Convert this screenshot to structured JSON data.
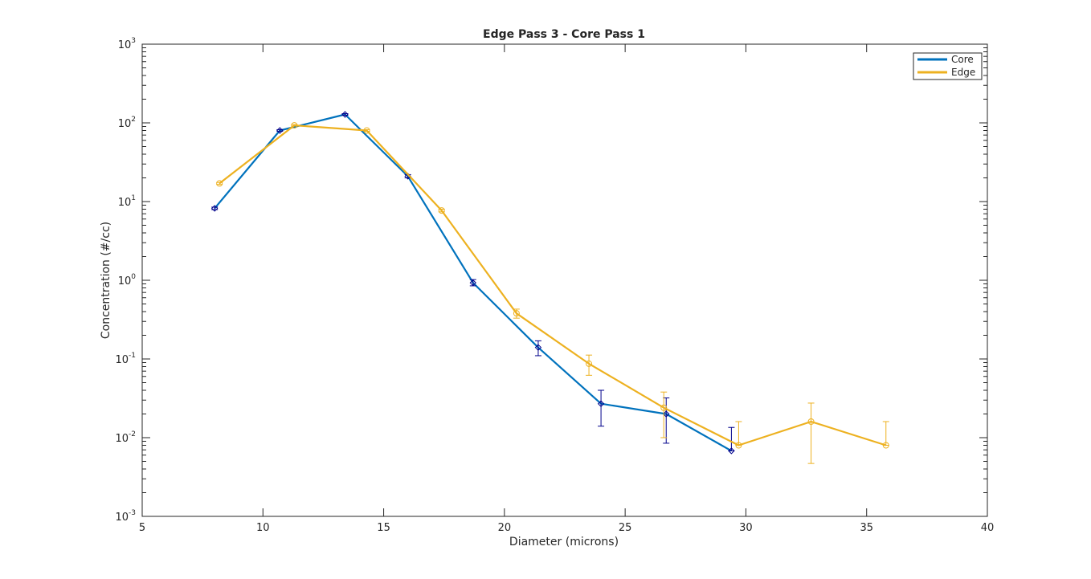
{
  "chart_data": {
    "type": "line",
    "title": "Edge Pass 3 - Core Pass 1",
    "xlabel": "Diameter (microns)",
    "ylabel": "Concentration (#/cc)",
    "xlim": [
      5,
      40
    ],
    "ylim": [
      0.001,
      1000
    ],
    "y_scale": "log",
    "x_ticks": [
      5,
      10,
      15,
      20,
      25,
      30,
      35,
      40
    ],
    "x_tick_labels": [
      "5",
      "10",
      "15",
      "20",
      "25",
      "30",
      "35",
      "40"
    ],
    "y_ticks": [
      {
        "value": 0.001,
        "base": "10",
        "exp": "-3"
      },
      {
        "value": 0.01,
        "base": "10",
        "exp": "-2"
      },
      {
        "value": 0.1,
        "base": "10",
        "exp": "-1"
      },
      {
        "value": 1,
        "base": "10",
        "exp": "0"
      },
      {
        "value": 10,
        "base": "10",
        "exp": "1"
      },
      {
        "value": 100,
        "base": "10",
        "exp": "2"
      },
      {
        "value": 1000,
        "base": "10",
        "exp": "3"
      }
    ],
    "grid": false,
    "legend_position": "top-right",
    "series": [
      {
        "name": "Core",
        "color": "#0072bd",
        "marker_color": "#00008b",
        "marker": "diamond",
        "points": [
          {
            "x": 8.0,
            "y": 8.2,
            "lo": 7.9,
            "hi": 8.5
          },
          {
            "x": 10.7,
            "y": 80,
            "lo": 78,
            "hi": 82
          },
          {
            "x": 13.4,
            "y": 128,
            "lo": 125,
            "hi": 131
          },
          {
            "x": 16.0,
            "y": 21,
            "lo": 20,
            "hi": 22
          },
          {
            "x": 18.7,
            "y": 0.93,
            "lo": 0.85,
            "hi": 1.02
          },
          {
            "x": 21.4,
            "y": 0.14,
            "lo": 0.11,
            "hi": 0.17
          },
          {
            "x": 24.0,
            "y": 0.027,
            "lo": 0.014,
            "hi": 0.04
          },
          {
            "x": 26.7,
            "y": 0.02,
            "lo": 0.0085,
            "hi": 0.032
          },
          {
            "x": 29.4,
            "y": 0.0068,
            "lo": 0.0068,
            "hi": 0.0135
          }
        ]
      },
      {
        "name": "Edge",
        "color": "#edb120",
        "marker_color": "#edb120",
        "marker": "circle",
        "points": [
          {
            "x": 8.2,
            "y": 17,
            "lo": 16.5,
            "hi": 17.5
          },
          {
            "x": 11.3,
            "y": 93,
            "lo": 91,
            "hi": 95
          },
          {
            "x": 14.3,
            "y": 80,
            "lo": 78,
            "hi": 82
          },
          {
            "x": 17.4,
            "y": 7.7,
            "lo": 7.4,
            "hi": 8.0
          },
          {
            "x": 20.5,
            "y": 0.38,
            "lo": 0.33,
            "hi": 0.43
          },
          {
            "x": 23.5,
            "y": 0.087,
            "lo": 0.062,
            "hi": 0.112
          },
          {
            "x": 26.6,
            "y": 0.024,
            "lo": 0.01,
            "hi": 0.038
          },
          {
            "x": 29.7,
            "y": 0.008,
            "lo": 0.008,
            "hi": 0.016
          },
          {
            "x": 32.7,
            "y": 0.016,
            "lo": 0.0047,
            "hi": 0.0275
          },
          {
            "x": 35.8,
            "y": 0.008,
            "lo": 0.008,
            "hi": 0.016
          }
        ]
      }
    ]
  }
}
